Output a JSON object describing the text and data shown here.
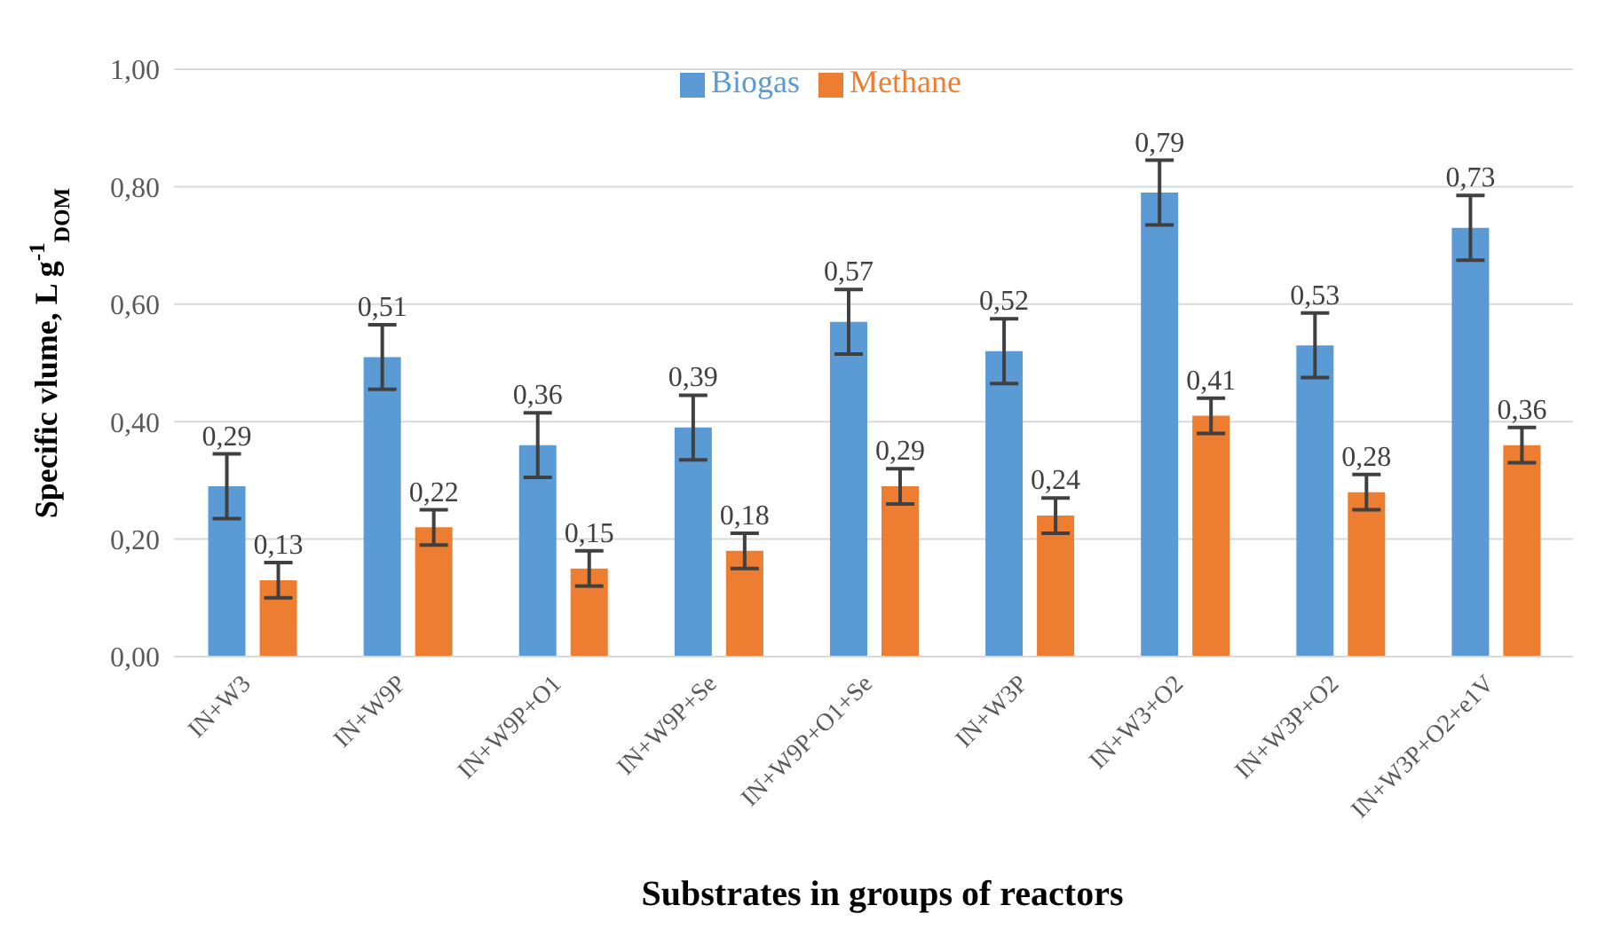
{
  "chart_data": {
    "type": "bar",
    "xlabel": "Substrates in groups of reactors",
    "ylabel": "Specific vlume, L g$^{-1}$$_{DOM}$",
    "categories": [
      "IN+W3",
      "IN+W9P",
      "IN+W9P+O1",
      "IN+W9P+Se",
      "IN+W9P+O1+Se",
      "IN+W3P",
      "IN+W3+O2",
      "IN+W3P+O2",
      "IN+W3P+O2+e1V"
    ],
    "series": [
      {
        "name": "Biogas",
        "color": "#5b9bd5",
        "values": [
          0.29,
          0.51,
          0.36,
          0.39,
          0.57,
          0.52,
          0.79,
          0.53,
          0.73
        ],
        "errors": [
          0.055,
          0.055,
          0.055,
          0.055,
          0.055,
          0.055,
          0.055,
          0.055,
          0.055
        ],
        "value_labels": [
          "0,29",
          "0,51",
          "0,36",
          "0,39",
          "0,57",
          "0,52",
          "0,79",
          "0,53",
          "0,73"
        ]
      },
      {
        "name": "Methane",
        "color": "#ed7d31",
        "values": [
          0.13,
          0.22,
          0.15,
          0.18,
          0.29,
          0.24,
          0.41,
          0.28,
          0.36
        ],
        "errors": [
          0.03,
          0.03,
          0.03,
          0.03,
          0.03,
          0.03,
          0.03,
          0.03,
          0.03
        ],
        "value_labels": [
          "0,13",
          "0,22",
          "0,15",
          "0,18",
          "0,29",
          "0,24",
          "0,41",
          "0,28",
          "0,36"
        ]
      }
    ],
    "ylim": [
      0,
      1
    ],
    "yticks": [
      {
        "value": 0,
        "label": "0,00"
      },
      {
        "value": 0.2,
        "label": "0,20"
      },
      {
        "value": 0.4,
        "label": "0,40"
      },
      {
        "value": 0.6,
        "label": "0,60"
      },
      {
        "value": 0.8,
        "label": "0,80"
      },
      {
        "value": 1,
        "label": "1,00"
      }
    ],
    "grid": "y",
    "legend": "top"
  }
}
